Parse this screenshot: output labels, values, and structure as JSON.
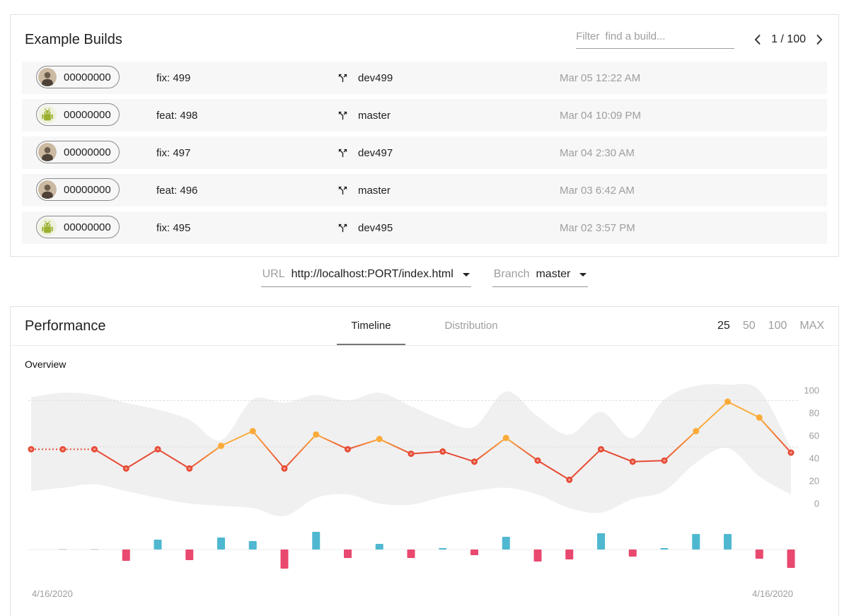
{
  "builds": {
    "title": "Example Builds",
    "filter_label": "Filter",
    "filter_placeholder": "find a build...",
    "pager_text": "1 / 100",
    "rows": [
      {
        "avatar": "person",
        "hash": "00000000",
        "message": "fix: 499",
        "branch": "dev499",
        "time": "Mar 05 12:22 AM"
      },
      {
        "avatar": "bot",
        "hash": "00000000",
        "message": "feat: 498",
        "branch": "master",
        "time": "Mar 04 10:09 PM"
      },
      {
        "avatar": "person",
        "hash": "00000000",
        "message": "fix: 497",
        "branch": "dev497",
        "time": "Mar 04 2:30 AM"
      },
      {
        "avatar": "person",
        "hash": "00000000",
        "message": "feat: 496",
        "branch": "master",
        "time": "Mar 03 6:42 AM"
      },
      {
        "avatar": "bot",
        "hash": "00000000",
        "message": "fix: 495",
        "branch": "dev495",
        "time": "Mar 02 3:57 PM"
      }
    ]
  },
  "controls": {
    "url_label": "URL",
    "url_value": "http://localhost:PORT/index.html",
    "branch_label": "Branch",
    "branch_value": "master"
  },
  "performance": {
    "title": "Performance",
    "tabs": [
      {
        "label": "Timeline",
        "active": true
      },
      {
        "label": "Distribution",
        "active": false
      }
    ],
    "ranges": [
      {
        "label": "25",
        "active": true
      },
      {
        "label": "50",
        "active": false
      },
      {
        "label": "100",
        "active": false
      },
      {
        "label": "MAX",
        "active": false
      }
    ],
    "section_label": "Overview"
  },
  "chart_data": {
    "type": "line",
    "title": "Overview",
    "x_start_label": "4/16/2020",
    "x_end_label": "4/16/2020",
    "y_ticks": [
      100,
      80,
      60,
      40,
      20,
      0
    ],
    "ylim": [
      0,
      100
    ],
    "gridline_values": [
      91,
      50
    ],
    "legend_position": "none",
    "series": [
      {
        "name": "score",
        "type": "line",
        "values": [
          48,
          48,
          48,
          31,
          48,
          31,
          51,
          64,
          31,
          61,
          48,
          57,
          44,
          46,
          37,
          58,
          38,
          21,
          48,
          37,
          38,
          64,
          90,
          76,
          45
        ],
        "dotted_segments": [
          0,
          1
        ]
      },
      {
        "name": "band-upper",
        "type": "area",
        "values": [
          94,
          98,
          96,
          89,
          83,
          74,
          56,
          92,
          89,
          96,
          91,
          98,
          86,
          74,
          68,
          99,
          77,
          61,
          81,
          58,
          92,
          104,
          105,
          100,
          49
        ]
      },
      {
        "name": "band-lower",
        "type": "area",
        "values": [
          11,
          14,
          17,
          11,
          5,
          0,
          -2,
          -4,
          -11,
          5,
          8,
          0,
          -1,
          6,
          11,
          14,
          8,
          -4,
          -8,
          4,
          11,
          36,
          49,
          24,
          8
        ]
      },
      {
        "name": "delta",
        "type": "bar",
        "values": [
          null,
          0,
          0,
          -16,
          14,
          -15,
          17,
          12,
          -27,
          25,
          -12,
          8,
          -12,
          2,
          -8,
          18,
          -17,
          -14,
          23,
          -10,
          2,
          22,
          22,
          -13,
          -26
        ]
      }
    ],
    "colors": {
      "point_high": "#fbab3a",
      "point_low": "#e74a34",
      "bar_positive": "#4fb8d0",
      "bar_negative": "#e9486f",
      "band": "#f0f0f0",
      "grid": "#dedede",
      "axis_text": "#9e9e9e",
      "baseline": "#ececec",
      "zero_bar": "#d9d9d9"
    },
    "point_color_threshold": 50
  }
}
